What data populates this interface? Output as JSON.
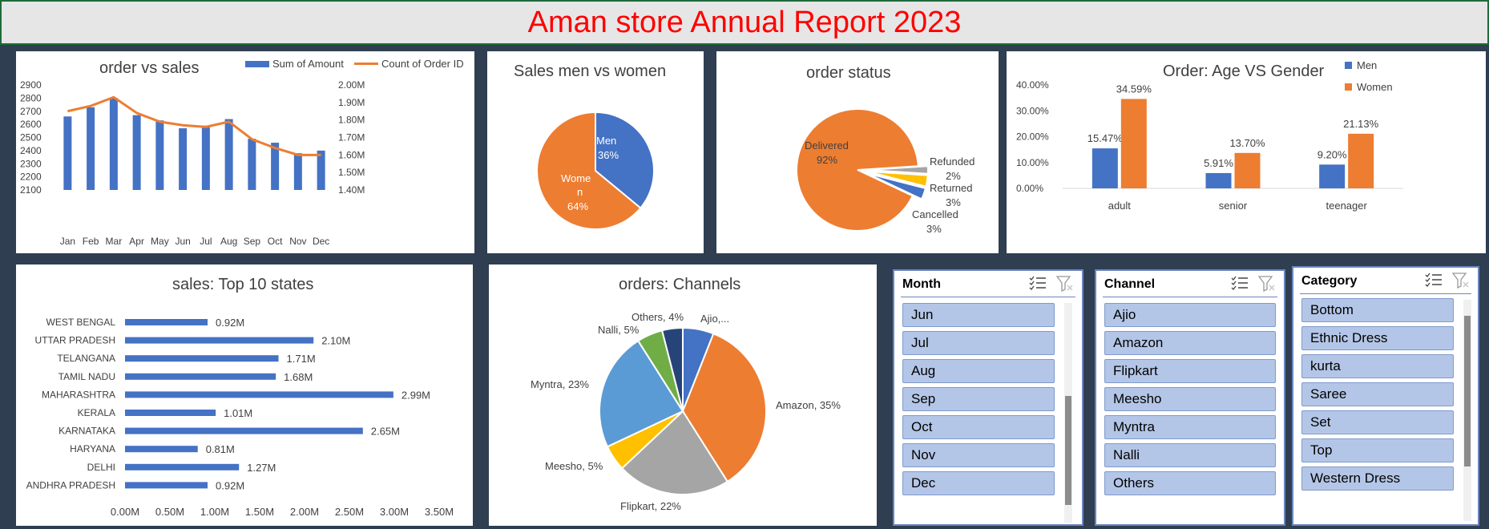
{
  "report_title": "Aman store Annual  Report 2023",
  "order_vs_sales": {
    "title": "order vs sales",
    "legend": [
      "Sum of Amount",
      "Count of Order ID"
    ],
    "left_ticks": [
      "2900",
      "2800",
      "2700",
      "2600",
      "2500",
      "2400",
      "2300",
      "2200",
      "2100"
    ],
    "right_ticks": [
      "2.00M",
      "1.90M",
      "1.80M",
      "1.70M",
      "1.60M",
      "1.50M",
      "1.40M"
    ],
    "chart_data": {
      "type": "bar",
      "categories": [
        "Jan",
        "Feb",
        "Mar",
        "Apr",
        "May",
        "Jun",
        "Jul",
        "Aug",
        "Sep",
        "Oct",
        "Nov",
        "Dec"
      ],
      "series": [
        {
          "name": "Sum of Amount",
          "type": "bar",
          "axis": "left",
          "values": [
            2660,
            2730,
            2800,
            2670,
            2630,
            2570,
            2590,
            2640,
            2490,
            2460,
            2380,
            2400
          ]
        },
        {
          "name": "Count of Order ID",
          "type": "line",
          "axis": "right",
          "values": [
            1.85,
            1.88,
            1.93,
            1.84,
            1.79,
            1.77,
            1.76,
            1.79,
            1.69,
            1.64,
            1.6,
            1.6
          ]
        }
      ],
      "ylim_left": [
        2100,
        2900
      ],
      "ylim_right": [
        1.4,
        2.0
      ]
    }
  },
  "sales_gender": {
    "title": "Sales men vs women",
    "chart_data": {
      "type": "pie",
      "labels": [
        "Men",
        "Women"
      ],
      "values": [
        36,
        64
      ],
      "colors": [
        "#4472c4",
        "#ed7d31"
      ]
    },
    "label_men": "Men",
    "label_men_pct": "36%",
    "label_women_1": "Wome",
    "label_women_2": "n",
    "label_women_pct": "64%"
  },
  "order_status": {
    "title": "order status",
    "chart_data": {
      "type": "pie",
      "labels": [
        "Delivered",
        "Refunded",
        "Returned",
        "Cancelled"
      ],
      "values": [
        92,
        2,
        3,
        3
      ],
      "colors": [
        "#ed7d31",
        "#a5a5a5",
        "#ffc000",
        "#4472c4"
      ]
    },
    "delivered": "Delivered",
    "delivered_pct": "92%",
    "refunded": "Refunded",
    "refunded_pct": "2%",
    "returned": "Returned",
    "returned_pct": "3%",
    "cancelled": "Cancelled",
    "cancelled_pct": "3%"
  },
  "age_gender": {
    "title": "Order: Age VS Gender",
    "legend": [
      "Men",
      "Women"
    ],
    "y_ticks": [
      "40.00%",
      "30.00%",
      "20.00%",
      "10.00%",
      "0.00%"
    ],
    "chart_data": {
      "type": "bar",
      "categories": [
        "adult",
        "senior",
        "teenager"
      ],
      "series": [
        {
          "name": "Men",
          "values": [
            15.47,
            5.91,
            9.2
          ],
          "labels": [
            "15.47%",
            "5.91%",
            "9.20%"
          ]
        },
        {
          "name": "Women",
          "values": [
            34.59,
            13.7,
            21.13
          ],
          "labels": [
            "34.59%",
            "13.70%",
            "21.13%"
          ]
        }
      ],
      "ylim": [
        0,
        40
      ]
    }
  },
  "top_states": {
    "title": "sales: Top 10 states",
    "x_ticks": [
      "0.00M",
      "0.50M",
      "1.00M",
      "1.50M",
      "2.00M",
      "2.50M",
      "3.00M",
      "3.50M"
    ],
    "chart_data": {
      "type": "bar",
      "orientation": "horizontal",
      "categories": [
        "WEST BENGAL",
        "UTTAR PRADESH",
        "TELANGANA",
        "TAMIL NADU",
        "MAHARASHTRA",
        "KERALA",
        "KARNATAKA",
        "HARYANA",
        "DELHI",
        "ANDHRA PRADESH"
      ],
      "values": [
        0.92,
        2.1,
        1.71,
        1.68,
        2.99,
        1.01,
        2.65,
        0.81,
        1.27,
        0.92
      ],
      "labels": [
        "0.92M",
        "2.10M",
        "1.71M",
        "1.68M",
        "2.99M",
        "1.01M",
        "2.65M",
        "0.81M",
        "1.27M",
        "0.92M"
      ],
      "xlim": [
        0,
        3.5
      ]
    }
  },
  "channels": {
    "title": "orders: Channels",
    "chart_data": {
      "type": "pie",
      "labels": [
        "Ajio",
        "Amazon",
        "Flipkart",
        "Meesho",
        "Myntra",
        "Nalli",
        "Others"
      ],
      "values": [
        6,
        35,
        22,
        5,
        23,
        5,
        4
      ],
      "colors": [
        "#4472c4",
        "#ed7d31",
        "#a5a5a5",
        "#ffc000",
        "#5b9bd5",
        "#70ad47",
        "#264478"
      ]
    },
    "slice_labels": [
      "Ajio,...",
      "Amazon, 35%",
      "Flipkart, 22%",
      "Meesho, 5%",
      "Myntra, 23%",
      "Nalli, 5%",
      "Others, 4%"
    ]
  },
  "slicers": {
    "month": {
      "header": "Month",
      "items": [
        "Jun",
        "Jul",
        "Aug",
        "Sep",
        "Oct",
        "Nov",
        "Dec"
      ]
    },
    "channel": {
      "header": "Channel",
      "items": [
        "Ajio",
        "Amazon",
        "Flipkart",
        "Meesho",
        "Myntra",
        "Nalli",
        "Others"
      ]
    },
    "category": {
      "header": "Category",
      "items": [
        "Bottom",
        "Ethnic Dress",
        "kurta",
        "Saree",
        "Set",
        "Top",
        "Western Dress"
      ]
    }
  }
}
